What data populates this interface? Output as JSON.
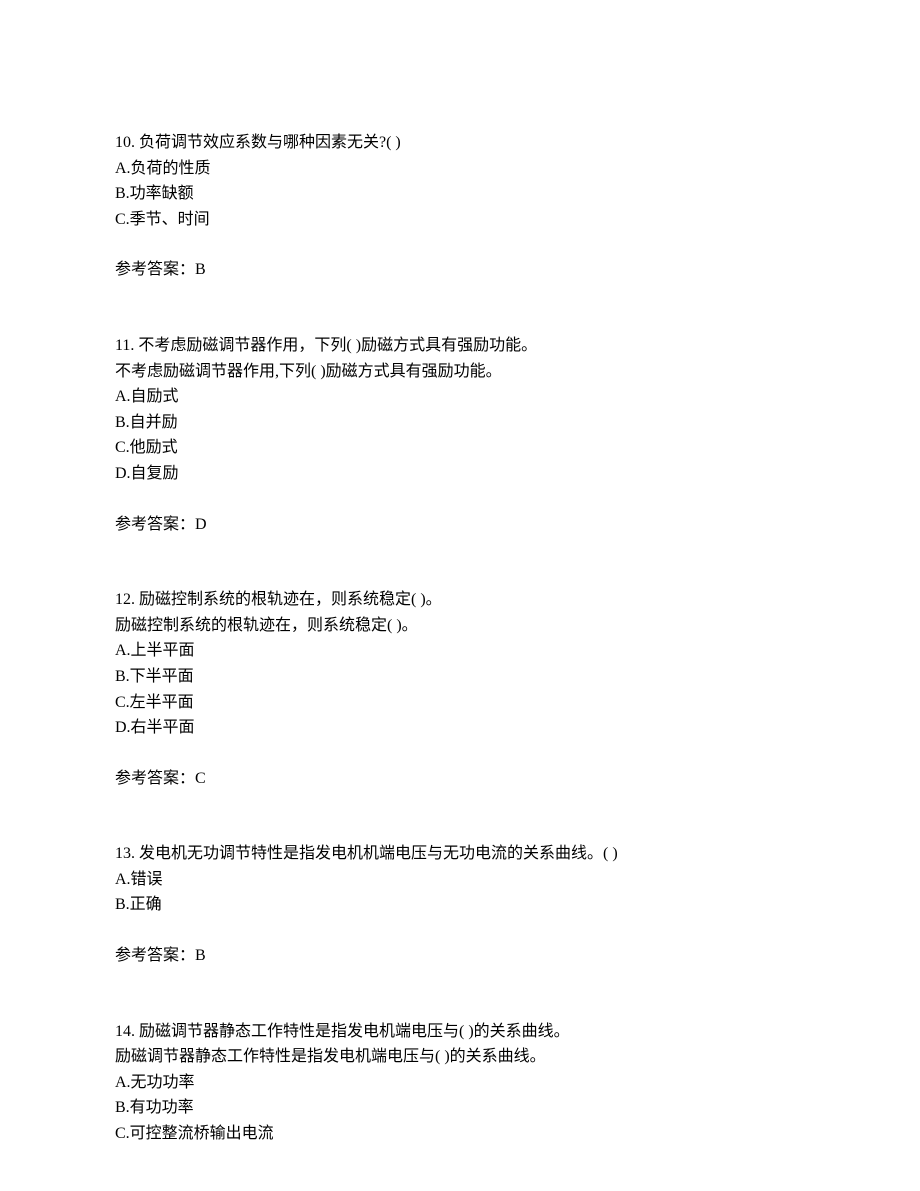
{
  "questions": [
    {
      "number": "10.",
      "text": "负荷调节效应系数与哪种因素无关?(   )",
      "options": [
        "A.负荷的性质",
        "B.功率缺额",
        "C.季节、时间"
      ],
      "answer_label": "参考答案：",
      "answer_value": "B"
    },
    {
      "number": "11.",
      "text": "不考虑励磁调节器作用，下列(   )励磁方式具有强励功能。",
      "subtext": "不考虑励磁调节器作用,下列(  )励磁方式具有强励功能。",
      "options": [
        "A.自励式",
        "B.自并励",
        "C.他励式",
        "D.自复励"
      ],
      "answer_label": "参考答案：",
      "answer_value": "D"
    },
    {
      "number": "12.",
      "text": "励磁控制系统的根轨迹在，则系统稳定(   )。",
      "subtext": "励磁控制系统的根轨迹在，则系统稳定(  )。",
      "options": [
        "A.上半平面",
        "B.下半平面",
        "C.左半平面",
        "D.右半平面"
      ],
      "answer_label": "参考答案：",
      "answer_value": "C"
    },
    {
      "number": "13.",
      "text": "发电机无功调节特性是指发电机机端电压与无功电流的关系曲线。(   )",
      "options": [
        "A.错误",
        "B.正确"
      ],
      "answer_label": "参考答案：",
      "answer_value": "B"
    },
    {
      "number": "14.",
      "text": "励磁调节器静态工作特性是指发电机端电压与(   )的关系曲线。",
      "subtext": "励磁调节器静态工作特性是指发电机端电压与(  )的关系曲线。",
      "options": [
        "A.无功功率",
        "B.有功功率",
        "C.可控整流桥输出电流"
      ],
      "answer_label": "",
      "answer_value": ""
    }
  ]
}
